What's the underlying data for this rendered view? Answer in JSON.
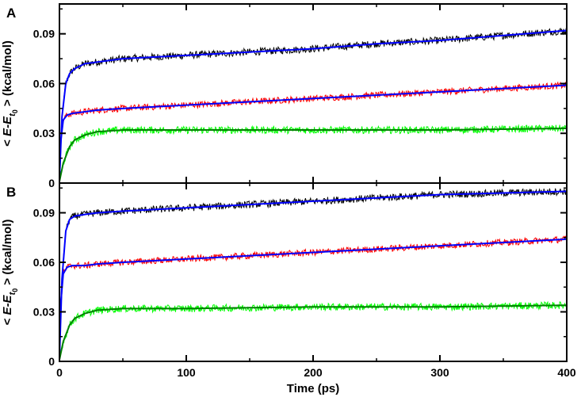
{
  "chart_data": [
    {
      "type": "line",
      "panel_label": "A",
      "xlabel": "",
      "ylabel": "< E-E_t0 > (kcal/mol)",
      "ylabel_parts": {
        "open": "< ",
        "main": "E-E",
        "sub": "t",
        "subsub": "0",
        "close": " > (kcal/mol)"
      },
      "xlim": [
        0,
        400
      ],
      "ylim": [
        0,
        0.108
      ],
      "x_ticks": [
        0,
        100,
        200,
        300,
        400
      ],
      "y_ticks": [
        0,
        0.03,
        0.06,
        0.09
      ],
      "y_tick_labels": [
        "0",
        "0.03",
        "0.06",
        "0.09"
      ],
      "grid": false,
      "series": [
        {
          "color": "#000000",
          "kind": "noisy",
          "noise": 0.0022,
          "x": [
            0,
            2,
            5,
            8,
            12,
            20,
            30,
            50,
            100,
            150,
            200,
            250,
            300,
            350,
            400
          ],
          "values": [
            0.002,
            0.04,
            0.06,
            0.066,
            0.069,
            0.072,
            0.073,
            0.075,
            0.077,
            0.079,
            0.081,
            0.084,
            0.086,
            0.089,
            0.092
          ]
        },
        {
          "color": "#ff0000",
          "kind": "noisy",
          "noise": 0.002,
          "x": [
            0,
            1,
            3,
            6,
            10,
            20,
            30,
            50,
            100,
            150,
            200,
            250,
            300,
            350,
            400
          ],
          "values": [
            0.002,
            0.025,
            0.038,
            0.041,
            0.042,
            0.043,
            0.044,
            0.045,
            0.047,
            0.049,
            0.051,
            0.053,
            0.055,
            0.057,
            0.059
          ]
        },
        {
          "color": "#00ff00",
          "kind": "noisy",
          "noise": 0.0022,
          "x": [
            0,
            3,
            8,
            12,
            20,
            30,
            50,
            100,
            200,
            300,
            400
          ],
          "values": [
            0.001,
            0.012,
            0.022,
            0.026,
            0.029,
            0.031,
            0.032,
            0.032,
            0.032,
            0.032,
            0.033
          ]
        },
        {
          "color": "#0000ff",
          "kind": "fit",
          "x": [
            0,
            2,
            5,
            8,
            12,
            20,
            30,
            50,
            100,
            150,
            200,
            250,
            300,
            350,
            400
          ],
          "values": [
            0.002,
            0.04,
            0.06,
            0.066,
            0.069,
            0.072,
            0.073,
            0.075,
            0.077,
            0.079,
            0.081,
            0.084,
            0.086,
            0.089,
            0.092
          ]
        },
        {
          "color": "#0000ff",
          "kind": "fit",
          "x": [
            0,
            1,
            3,
            6,
            10,
            20,
            30,
            50,
            100,
            150,
            200,
            250,
            300,
            350,
            400
          ],
          "values": [
            0.002,
            0.025,
            0.038,
            0.041,
            0.042,
            0.043,
            0.044,
            0.045,
            0.047,
            0.049,
            0.051,
            0.053,
            0.055,
            0.057,
            0.059
          ]
        },
        {
          "color": "#008000",
          "kind": "fit",
          "x": [
            0,
            3,
            8,
            12,
            20,
            30,
            50,
            100,
            200,
            300,
            400
          ],
          "values": [
            0.001,
            0.012,
            0.022,
            0.026,
            0.029,
            0.031,
            0.032,
            0.032,
            0.032,
            0.032,
            0.033
          ]
        }
      ]
    },
    {
      "type": "line",
      "panel_label": "B",
      "xlabel": "Time (ps)",
      "ylabel": "< E-E_t0 > (kcal/mol)",
      "ylabel_parts": {
        "open": "< ",
        "main": "E-E",
        "sub": "t",
        "subsub": "0",
        "close": " > (kcal/mol)"
      },
      "xlim": [
        0,
        400
      ],
      "ylim": [
        0,
        0.108
      ],
      "x_ticks": [
        0,
        100,
        200,
        300,
        400
      ],
      "x_tick_labels": [
        "0",
        "100",
        "200",
        "300",
        "400"
      ],
      "y_ticks": [
        0,
        0.03,
        0.06,
        0.09
      ],
      "y_tick_labels": [
        "0",
        "0.03",
        "0.06",
        "0.09"
      ],
      "grid": false,
      "series": [
        {
          "color": "#000000",
          "kind": "noisy",
          "noise": 0.0022,
          "x": [
            0,
            2,
            5,
            8,
            12,
            20,
            30,
            50,
            100,
            150,
            200,
            250,
            300,
            350,
            400
          ],
          "values": [
            0.002,
            0.05,
            0.079,
            0.086,
            0.088,
            0.089,
            0.09,
            0.091,
            0.093,
            0.095,
            0.097,
            0.099,
            0.101,
            0.102,
            0.103
          ]
        },
        {
          "color": "#ff0000",
          "kind": "noisy",
          "noise": 0.002,
          "x": [
            0,
            1,
            3,
            6,
            10,
            20,
            30,
            50,
            100,
            150,
            200,
            250,
            300,
            350,
            400
          ],
          "values": [
            0.002,
            0.035,
            0.053,
            0.057,
            0.058,
            0.058,
            0.059,
            0.06,
            0.062,
            0.064,
            0.066,
            0.068,
            0.07,
            0.072,
            0.074
          ]
        },
        {
          "color": "#00ff00",
          "kind": "noisy",
          "noise": 0.0022,
          "x": [
            0,
            3,
            8,
            12,
            20,
            30,
            50,
            100,
            200,
            300,
            400
          ],
          "values": [
            0.001,
            0.012,
            0.022,
            0.026,
            0.029,
            0.031,
            0.032,
            0.032,
            0.033,
            0.033,
            0.034
          ]
        },
        {
          "color": "#0000ff",
          "kind": "fit",
          "x": [
            0,
            2,
            5,
            8,
            12,
            20,
            30,
            50,
            100,
            150,
            200,
            250,
            300,
            350,
            400
          ],
          "values": [
            0.002,
            0.05,
            0.079,
            0.086,
            0.088,
            0.089,
            0.09,
            0.091,
            0.093,
            0.095,
            0.097,
            0.099,
            0.101,
            0.102,
            0.103
          ]
        },
        {
          "color": "#0000ff",
          "kind": "fit",
          "x": [
            0,
            1,
            3,
            6,
            10,
            20,
            30,
            50,
            100,
            150,
            200,
            250,
            300,
            350,
            400
          ],
          "values": [
            0.002,
            0.035,
            0.053,
            0.057,
            0.058,
            0.058,
            0.059,
            0.06,
            0.062,
            0.064,
            0.066,
            0.068,
            0.07,
            0.072,
            0.074
          ]
        },
        {
          "color": "#008000",
          "kind": "fit",
          "x": [
            0,
            3,
            8,
            12,
            20,
            30,
            50,
            100,
            200,
            300,
            400
          ],
          "values": [
            0.001,
            0.012,
            0.022,
            0.026,
            0.029,
            0.031,
            0.032,
            0.032,
            0.033,
            0.033,
            0.034
          ]
        }
      ]
    }
  ]
}
